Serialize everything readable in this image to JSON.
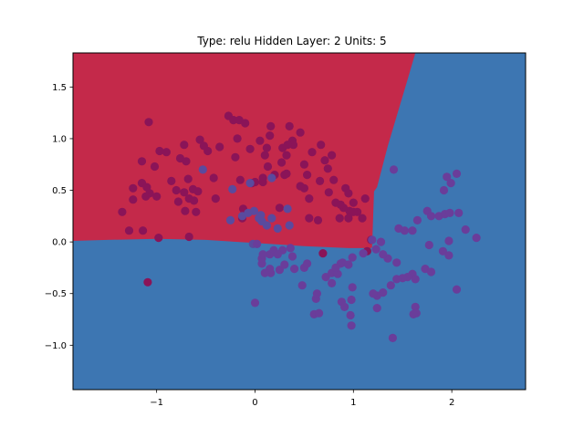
{
  "chart_data": {
    "type": "scatter",
    "title": "Type: relu Hidden Layer: 2 Units: 5",
    "xlabel": "",
    "ylabel": "",
    "xlim": [
      -1.85,
      2.75
    ],
    "ylim": [
      -1.43,
      1.83
    ],
    "xticks": [
      -1,
      0,
      1,
      2
    ],
    "yticks": [
      -1.0,
      -0.5,
      0.0,
      0.5,
      1.0,
      1.5
    ],
    "xtick_labels": [
      "−1",
      "0",
      "1",
      "2"
    ],
    "ytick_labels": [
      "−1.0",
      "−0.5",
      "0.0",
      "0.5",
      "1.0",
      "1.5"
    ],
    "grid": false,
    "decision_regions": {
      "background_class": "class-1",
      "class_0_region_color": "#c4294a",
      "class_1_region_color": "#3d76b2",
      "class_0_region_boundary": [
        [
          -1.85,
          0.01
        ],
        [
          -1.5,
          0.02
        ],
        [
          -1.0,
          0.03
        ],
        [
          -0.5,
          0.02
        ],
        [
          0.0,
          -0.01
        ],
        [
          0.5,
          -0.04
        ],
        [
          0.95,
          -0.06
        ],
        [
          1.18,
          -0.06
        ],
        [
          1.19,
          -0.05
        ],
        [
          1.21,
          0.49
        ],
        [
          1.24,
          0.53
        ],
        [
          1.35,
          0.93
        ],
        [
          1.55,
          1.57
        ],
        [
          1.63,
          1.83
        ],
        [
          -1.85,
          1.83
        ]
      ]
    },
    "series": [
      {
        "color": "#8a1458",
        "points": [
          [
            -1.08,
            1.16
          ],
          [
            -1.15,
            0.57
          ],
          [
            -1.07,
            0.47
          ],
          [
            -1.11,
            0.44
          ],
          [
            -1.24,
            0.41
          ],
          [
            -1.35,
            0.29
          ],
          [
            -1.28,
            0.11
          ],
          [
            -1.14,
            0.11
          ],
          [
            -1.24,
            0.52
          ],
          [
            -0.98,
            0.04
          ],
          [
            -1.15,
            0.78
          ],
          [
            -1.02,
            0.73
          ],
          [
            -0.97,
            0.88
          ],
          [
            -1.0,
            0.44
          ],
          [
            -1.1,
            0.53
          ],
          [
            -0.9,
            0.87
          ],
          [
            -0.85,
            0.59
          ],
          [
            -0.8,
            0.5
          ],
          [
            -0.76,
            0.81
          ],
          [
            -0.72,
            0.94
          ],
          [
            -0.7,
            0.78
          ],
          [
            -0.68,
            0.61
          ],
          [
            -0.72,
            0.48
          ],
          [
            -0.67,
            0.42
          ],
          [
            -0.62,
            0.4
          ],
          [
            -0.58,
            0.49
          ],
          [
            -0.63,
            0.51
          ],
          [
            -0.78,
            0.39
          ],
          [
            -0.71,
            0.3
          ],
          [
            -0.6,
            0.29
          ],
          [
            -0.67,
            0.05
          ],
          [
            -0.56,
            0.99
          ],
          [
            -0.52,
            0.93
          ],
          [
            -0.48,
            0.88
          ],
          [
            -0.42,
            0.62
          ],
          [
            -0.4,
            0.42
          ],
          [
            -0.36,
            0.92
          ],
          [
            -0.27,
            1.22
          ],
          [
            -0.22,
            1.18
          ],
          [
            -0.18,
            1.0
          ],
          [
            -0.16,
            1.18
          ],
          [
            -0.2,
            0.82
          ],
          [
            -0.15,
            0.6
          ],
          [
            -0.12,
            0.32
          ],
          [
            -0.13,
            0.23
          ],
          [
            -0.05,
            0.9
          ],
          [
            -0.03,
            0.57
          ],
          [
            0.0,
            0.58
          ],
          [
            0.08,
            0.62
          ],
          [
            0.1,
            0.84
          ],
          [
            0.12,
            0.91
          ],
          [
            0.13,
            0.73
          ],
          [
            0.15,
            1.03
          ],
          [
            0.16,
            1.12
          ],
          [
            0.2,
            0.65
          ],
          [
            0.27,
            0.77
          ],
          [
            0.28,
            0.91
          ],
          [
            0.32,
            0.84
          ],
          [
            0.35,
            1.12
          ],
          [
            0.38,
            0.98
          ],
          [
            0.39,
            0.94
          ],
          [
            0.46,
            1.06
          ],
          [
            0.5,
            0.75
          ],
          [
            0.53,
            0.65
          ],
          [
            0.58,
            0.87
          ],
          [
            0.66,
            0.59
          ],
          [
            0.67,
            0.94
          ],
          [
            0.71,
            0.79
          ],
          [
            0.74,
            0.71
          ],
          [
            0.78,
            0.84
          ],
          [
            0.8,
            0.6
          ],
          [
            0.92,
            0.52
          ],
          [
            0.95,
            0.47
          ],
          [
            0.96,
            0.3
          ],
          [
            1.0,
            0.38
          ],
          [
            1.04,
            0.29
          ],
          [
            1.09,
            0.23
          ],
          [
            1.12,
            0.42
          ],
          [
            1.18,
            0.02
          ],
          [
            1.14,
            -0.09
          ],
          [
            0.3,
            0.65
          ],
          [
            0.32,
            0.66
          ],
          [
            0.46,
            0.54
          ],
          [
            0.55,
            0.42
          ],
          [
            0.55,
            0.23
          ],
          [
            0.64,
            0.21
          ],
          [
            0.75,
            0.48
          ],
          [
            0.82,
            0.38
          ],
          [
            0.9,
            0.33
          ],
          [
            0.98,
            0.29
          ],
          [
            0.69,
            -0.11
          ],
          [
            0.86,
            0.23
          ],
          [
            0.87,
            0.36
          ],
          [
            1.0,
            0.29
          ],
          [
            -0.1,
            1.15
          ],
          [
            0.05,
            0.98
          ],
          [
            0.33,
            0.94
          ],
          [
            0.08,
            0.58
          ],
          [
            0.5,
            0.52
          ],
          [
            0.95,
            0.23
          ],
          [
            0.25,
            0.33
          ],
          [
            -1.09,
            -0.39
          ]
        ]
      },
      {
        "color": "#5a4a9e",
        "points": [
          [
            -0.53,
            0.7
          ],
          [
            -0.23,
            0.51
          ],
          [
            -0.05,
            0.57
          ],
          [
            0.17,
            0.62
          ],
          [
            -0.25,
            0.21
          ],
          [
            -0.13,
            0.25
          ],
          [
            -0.07,
            0.28
          ],
          [
            -0.01,
            0.3
          ],
          [
            0.06,
            0.26
          ],
          [
            0.04,
            0.23
          ],
          [
            0.17,
            0.23
          ],
          [
            0.33,
            0.32
          ],
          [
            0.23,
            0.13
          ],
          [
            0.35,
            0.16
          ],
          [
            0.12,
            0.16
          ],
          [
            0.07,
            0.2
          ],
          [
            -0.02,
            -0.02
          ]
        ]
      },
      {
        "color": "#6a3d9a",
        "points": [
          [
            1.41,
            0.7
          ],
          [
            1.46,
            0.13
          ],
          [
            1.52,
            0.11
          ],
          [
            1.6,
            0.11
          ],
          [
            1.65,
            0.21
          ],
          [
            1.75,
            0.3
          ],
          [
            1.79,
            0.25
          ],
          [
            1.87,
            0.25
          ],
          [
            1.93,
            0.27
          ],
          [
            1.98,
            0.28
          ],
          [
            2.07,
            0.28
          ],
          [
            2.14,
            0.12
          ],
          [
            2.25,
            0.04
          ],
          [
            1.97,
            0.01
          ],
          [
            1.92,
            0.5
          ],
          [
            1.99,
            0.57
          ],
          [
            1.95,
            0.63
          ],
          [
            2.05,
            0.66
          ],
          [
            1.77,
            -0.03
          ],
          [
            1.91,
            -0.09
          ],
          [
            1.97,
            -0.13
          ],
          [
            1.73,
            -0.26
          ],
          [
            1.79,
            -0.29
          ],
          [
            1.6,
            -0.31
          ],
          [
            1.63,
            -0.36
          ],
          [
            1.55,
            -0.34
          ],
          [
            1.5,
            -0.35
          ],
          [
            1.44,
            -0.2
          ],
          [
            1.35,
            -0.16
          ],
          [
            1.3,
            -0.12
          ],
          [
            1.28,
            0.0
          ],
          [
            1.23,
            -0.07
          ],
          [
            1.44,
            -0.36
          ],
          [
            1.38,
            -0.42
          ],
          [
            1.3,
            -0.49
          ],
          [
            1.24,
            -0.52
          ],
          [
            1.2,
            -0.5
          ],
          [
            1.24,
            -0.64
          ],
          [
            1.63,
            -0.63
          ],
          [
            1.64,
            -0.69
          ],
          [
            1.61,
            -0.7
          ],
          [
            2.05,
            -0.46
          ],
          [
            1.4,
            -0.93
          ],
          [
            0.99,
            -0.44
          ],
          [
            0.98,
            -0.56
          ],
          [
            0.88,
            -0.58
          ],
          [
            0.91,
            -0.63
          ],
          [
            0.97,
            -0.71
          ],
          [
            0.98,
            -0.81
          ],
          [
            0.6,
            -0.7
          ],
          [
            0.65,
            -0.69
          ],
          [
            0.62,
            -0.55
          ],
          [
            0.63,
            -0.5
          ],
          [
            0.72,
            -0.34
          ],
          [
            0.78,
            -0.3
          ],
          [
            0.84,
            -0.31
          ],
          [
            0.87,
            -0.21
          ],
          [
            0.89,
            -0.2
          ],
          [
            0.95,
            -0.22
          ],
          [
            0.99,
            -0.15
          ],
          [
            0.82,
            -0.25
          ],
          [
            0.78,
            -0.4
          ],
          [
            0.48,
            -0.42
          ],
          [
            0.5,
            -0.25
          ],
          [
            0.53,
            -0.21
          ],
          [
            0.25,
            -0.27
          ],
          [
            0.16,
            -0.3
          ],
          [
            0.15,
            -0.26
          ],
          [
            0.1,
            -0.3
          ],
          [
            0.07,
            -0.21
          ],
          [
            0.07,
            -0.16
          ],
          [
            0.15,
            -0.12
          ],
          [
            0.19,
            -0.08
          ],
          [
            0.28,
            -0.08
          ],
          [
            0.36,
            -0.06
          ],
          [
            0.38,
            -0.14
          ],
          [
            0.4,
            -0.26
          ],
          [
            0.3,
            -0.22
          ],
          [
            0.02,
            -0.02
          ],
          [
            0.08,
            -0.12
          ],
          [
            0.23,
            -0.12
          ],
          [
            0.0,
            -0.59
          ],
          [
            1.1,
            -0.11
          ],
          [
            1.19,
            0.02
          ]
        ]
      }
    ]
  }
}
